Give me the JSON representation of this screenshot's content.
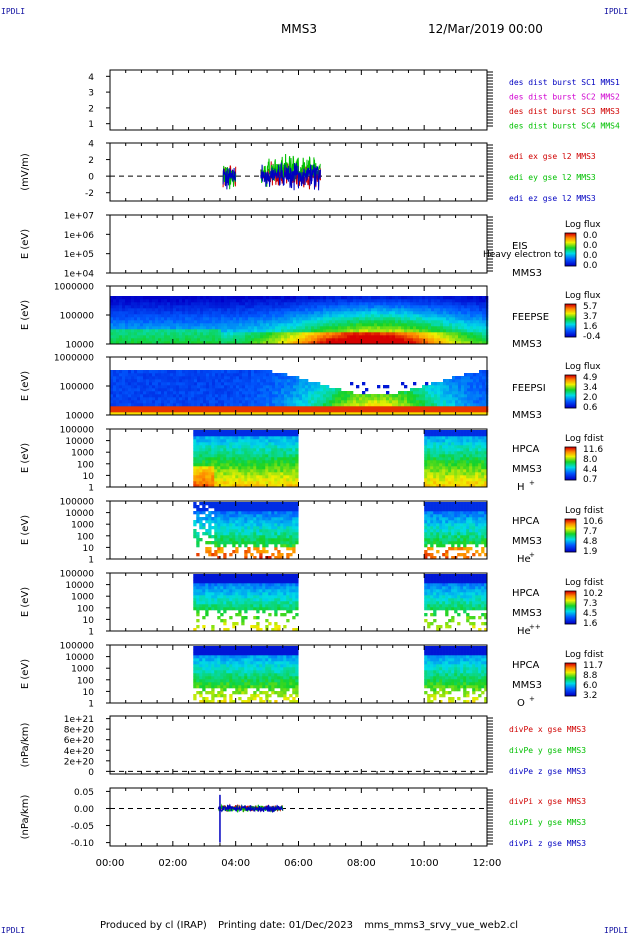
{
  "header": {
    "corner_tl": "IPDLI",
    "corner_tr": "IPDLI",
    "title": "MMS3",
    "date": "12/Mar/2019 00:00"
  },
  "footer": {
    "produced": "Produced by cl (IRAP)",
    "printing": "Printing date: 01/Dec/2023",
    "script": "mms_mms3_srvy_vue_web2.cl",
    "corner_bl": "IPDLI",
    "corner_br": "IPDLI"
  },
  "colors": {
    "mms1": "#0000c0",
    "mms2": "#d000d0",
    "mms3": "#d00000",
    "mms4": "#00c000"
  },
  "chart_data": {
    "type": "heatmap",
    "xlim": [
      0,
      12
    ],
    "xunit": "hours",
    "xticks": [
      "00:00",
      "02:00",
      "04:00",
      "06:00",
      "08:00",
      "10:00",
      "12:00"
    ],
    "panels": [
      {
        "id": "des-dist",
        "kind": "legend-only",
        "yticks": [
          "4",
          "3",
          "2",
          "1"
        ],
        "ylim": [
          0.6,
          4.4
        ],
        "legend": [
          {
            "text": "des dist burst SC1 MMS1",
            "color": "#0000c0"
          },
          {
            "text": "des dist burst SC2 MMS2",
            "color": "#d000d0"
          },
          {
            "text": "des dist burst SC3 MMS3",
            "color": "#d00000"
          },
          {
            "text": "des dist burst SC4 MMS4",
            "color": "#00c000"
          }
        ]
      },
      {
        "id": "edi",
        "kind": "line",
        "ylabel": "(mV/m)",
        "yticks": [
          "4",
          "2",
          "0",
          "-2"
        ],
        "ylim": [
          -3,
          4
        ],
        "zero_line": true,
        "legend": [
          {
            "text": "edi ex gse l2 MMS3",
            "color": "#d00000"
          },
          {
            "text": "edi ey gse l2 MMS3",
            "color": "#00c000"
          },
          {
            "text": "edi ez gse l2 MMS3",
            "color": "#0000c0"
          }
        ],
        "segments": [
          [
            3.6,
            4.0
          ],
          [
            4.8,
            6.7
          ]
        ],
        "amplitude": 1.8
      },
      {
        "id": "eis",
        "kind": "spectrogram",
        "ylabel": "E (eV)",
        "yticks": [
          "1e+07",
          "1e+06",
          "1e+05",
          "1e+04"
        ],
        "ylim": [
          4,
          7
        ],
        "instrument": "EIS",
        "sub": "MMS3",
        "ghost": "Heavy electron to",
        "cbar_label": "Log flux",
        "cbar_ticks": [
          "0.0",
          "0.0",
          "0.0",
          "0.0"
        ],
        "model": "empty"
      },
      {
        "id": "feeps-e",
        "kind": "spectrogram",
        "ylabel": "E (eV)",
        "yticks": [
          "1000000",
          "100000",
          "10000"
        ],
        "ylim": [
          4,
          6
        ],
        "instrument": "FEEPSE",
        "sub": "MMS3",
        "cbar_label": "Log flux",
        "cbar_ticks": [
          "5.7",
          "3.7",
          "1.6",
          "-0.4"
        ],
        "model": "feepse",
        "coverage": [
          [
            0,
            12
          ]
        ]
      },
      {
        "id": "feeps-i",
        "kind": "spectrogram",
        "ylabel": "E (eV)",
        "yticks": [
          "1000000",
          "100000",
          "10000"
        ],
        "ylim": [
          4,
          6
        ],
        "instrument": "FEEPSI",
        "sub": "MMS3",
        "cbar_label": "Log flux",
        "cbar_ticks": [
          "4.9",
          "3.4",
          "2.0",
          "0.6"
        ],
        "model": "feepsi",
        "coverage": [
          [
            0,
            12
          ]
        ]
      },
      {
        "id": "hpca-h",
        "kind": "spectrogram",
        "ylabel": "E (eV)",
        "yticks": [
          "100000",
          "10000",
          "1000",
          "100",
          "10",
          "1"
        ],
        "ylim": [
          0,
          5
        ],
        "instrument": "HPCA",
        "sub": "MMS3",
        "species": "H",
        "charge": "+",
        "cbar_label": "Log fdist",
        "cbar_ticks": [
          "11.6",
          "8.0",
          "4.4",
          "0.7"
        ],
        "model": "hpca_h",
        "coverage": [
          [
            2.65,
            5.95
          ],
          [
            10.0,
            12.0
          ]
        ]
      },
      {
        "id": "hpca-he",
        "kind": "spectrogram",
        "ylabel": "E (eV)",
        "yticks": [
          "100000",
          "10000",
          "1000",
          "100",
          "10",
          "1"
        ],
        "ylim": [
          0,
          5
        ],
        "instrument": "HPCA",
        "sub": "MMS3",
        "species": "He",
        "charge": "+",
        "cbar_label": "Log fdist",
        "cbar_ticks": [
          "10.6",
          "7.7",
          "4.8",
          "1.9"
        ],
        "model": "hpca_sparse",
        "coverage": [
          [
            2.65,
            5.95
          ],
          [
            10.0,
            12.0
          ]
        ]
      },
      {
        "id": "hpca-he2",
        "kind": "spectrogram",
        "ylabel": "E (eV)",
        "yticks": [
          "100000",
          "10000",
          "1000",
          "100",
          "10",
          "1"
        ],
        "ylim": [
          0,
          5
        ],
        "instrument": "HPCA",
        "sub": "MMS3",
        "species": "He",
        "charge": "++",
        "cbar_label": "Log fdist",
        "cbar_ticks": [
          "10.2",
          "7.3",
          "4.5",
          "1.6"
        ],
        "model": "hpca_he2",
        "coverage": [
          [
            2.65,
            5.95
          ],
          [
            10.0,
            12.0
          ]
        ]
      },
      {
        "id": "hpca-o",
        "kind": "spectrogram",
        "ylabel": "E (eV)",
        "yticks": [
          "100000",
          "10000",
          "1000",
          "100",
          "10",
          "1"
        ],
        "ylim": [
          0,
          5
        ],
        "instrument": "HPCA",
        "sub": "MMS3",
        "species": "O",
        "charge": "+",
        "cbar_label": "Log fdist",
        "cbar_ticks": [
          "11.7",
          "8.8",
          "6.0",
          "3.2"
        ],
        "model": "hpca_o",
        "coverage": [
          [
            2.65,
            5.95
          ],
          [
            10.0,
            12.0
          ]
        ]
      },
      {
        "id": "divpe",
        "kind": "line",
        "ylabel": "(nPa/km)",
        "yticks": [
          "1e+21",
          "8e+20",
          "6e+20",
          "4e+20",
          "2e+20",
          "0"
        ],
        "ylim": [
          -5e+19,
          1.05e+21
        ],
        "zero_line": true,
        "legend": [
          {
            "text": "divPe x gse MMS3",
            "color": "#d00000"
          },
          {
            "text": "divPe y gse MMS3",
            "color": "#00c000"
          },
          {
            "text": "divPe z gse MMS3",
            "color": "#0000c0"
          }
        ],
        "segments": [],
        "amplitude": 0
      },
      {
        "id": "divpi",
        "kind": "line",
        "ylabel": "(nPa/km)",
        "yticks": [
          "0.05",
          "0.00",
          "-0.05",
          "-0.10"
        ],
        "ylim": [
          -0.11,
          0.06
        ],
        "zero_line": true,
        "legend": [
          {
            "text": "divPi x gse MMS3",
            "color": "#d00000"
          },
          {
            "text": "divPi y gse MMS3",
            "color": "#00c000"
          },
          {
            "text": "divPi z gse MMS3",
            "color": "#0000c0"
          }
        ],
        "segments": [
          [
            3.45,
            5.5
          ]
        ],
        "amplitude": 0.012,
        "spike": {
          "x": 3.5,
          "min": -0.1,
          "max": 0.04
        }
      }
    ]
  }
}
